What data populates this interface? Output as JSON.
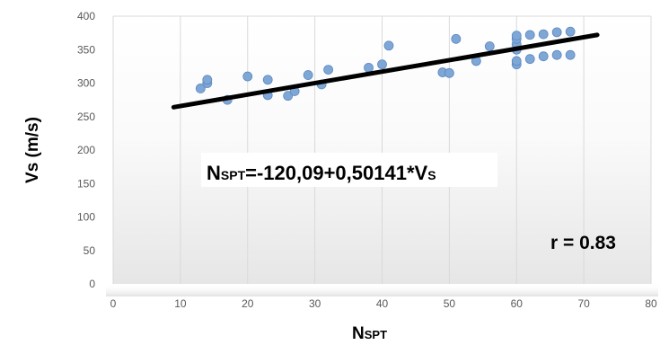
{
  "chart_data": {
    "type": "scatter",
    "title": "",
    "xlabel": {
      "main": "N",
      "sub": "SPT"
    },
    "ylabel": "Vs (m/s)",
    "xlim": [
      0,
      80
    ],
    "ylim": [
      0,
      400
    ],
    "x_ticks": [
      "0",
      "10",
      "20",
      "30",
      "40",
      "50",
      "60",
      "70",
      "80"
    ],
    "y_ticks": [
      "0",
      "50",
      "100",
      "150",
      "200",
      "250",
      "300",
      "350",
      "400"
    ],
    "grid": "vertical",
    "legend": "none",
    "colors": {
      "points": "#7fa7d6",
      "points_edge": "#5a88c2",
      "trendline": "#000000"
    },
    "points": [
      {
        "x": 13,
        "y": 292
      },
      {
        "x": 14,
        "y": 300
      },
      {
        "x": 14,
        "y": 305
      },
      {
        "x": 17,
        "y": 275
      },
      {
        "x": 20,
        "y": 310
      },
      {
        "x": 23,
        "y": 305
      },
      {
        "x": 23,
        "y": 282
      },
      {
        "x": 26,
        "y": 281
      },
      {
        "x": 27,
        "y": 288
      },
      {
        "x": 29,
        "y": 312
      },
      {
        "x": 31,
        "y": 298
      },
      {
        "x": 32,
        "y": 320
      },
      {
        "x": 38,
        "y": 323
      },
      {
        "x": 40,
        "y": 328
      },
      {
        "x": 41,
        "y": 356
      },
      {
        "x": 49,
        "y": 316
      },
      {
        "x": 50,
        "y": 315
      },
      {
        "x": 51,
        "y": 366
      },
      {
        "x": 54,
        "y": 333
      },
      {
        "x": 56,
        "y": 355
      },
      {
        "x": 60,
        "y": 328
      },
      {
        "x": 60,
        "y": 333
      },
      {
        "x": 60,
        "y": 350
      },
      {
        "x": 60,
        "y": 358
      },
      {
        "x": 60,
        "y": 366
      },
      {
        "x": 60,
        "y": 371
      },
      {
        "x": 62,
        "y": 336
      },
      {
        "x": 62,
        "y": 372
      },
      {
        "x": 64,
        "y": 340
      },
      {
        "x": 64,
        "y": 373
      },
      {
        "x": 66,
        "y": 342
      },
      {
        "x": 66,
        "y": 376
      },
      {
        "x": 68,
        "y": 342
      },
      {
        "x": 68,
        "y": 377
      }
    ],
    "trendline": {
      "x": [
        9,
        72
      ],
      "y": [
        264,
        372
      ]
    },
    "annotations": {
      "equation": {
        "main": "N",
        "sub": "SPT",
        "rest": "=-120,09+0,50141*V",
        "sub2": "S"
      },
      "r": "r = 0.83"
    }
  }
}
